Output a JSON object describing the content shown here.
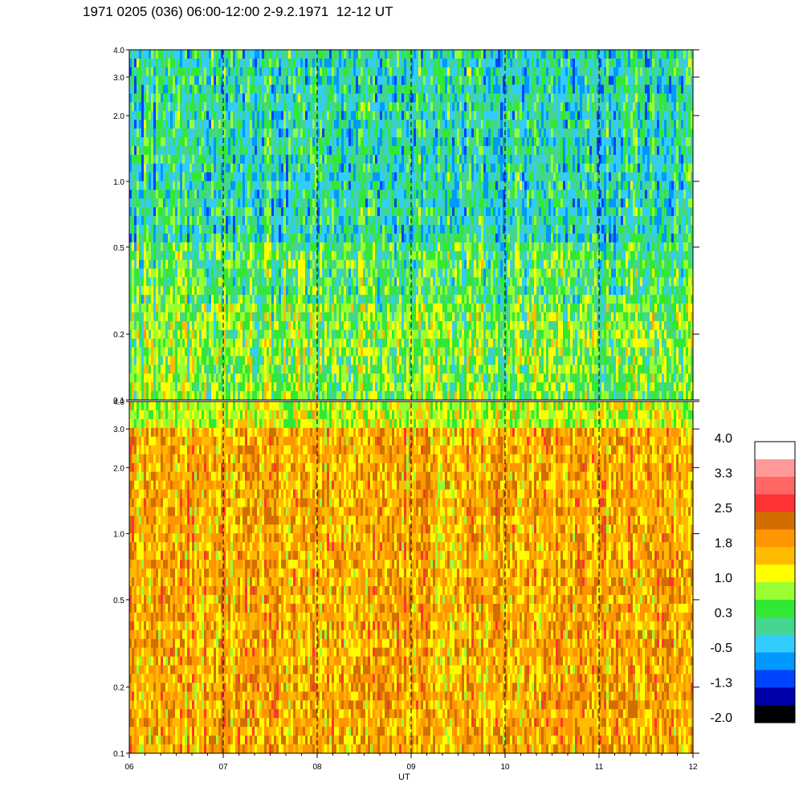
{
  "chart_data": {
    "type": "heatmap",
    "title": "1971 0205 (036) 06:00-12:00 2-9.2.1971  12-12 UT",
    "xlabel": "UT",
    "x_ticks": [
      "06",
      "07",
      "08",
      "09",
      "10",
      "11",
      "12"
    ],
    "x_range": [
      6,
      12
    ],
    "y_ticks": [
      "0.1",
      "0.2",
      "0.5",
      "1.0",
      "2.0",
      "3.0",
      "4.0"
    ],
    "y_tick_values": [
      0.1,
      0.2,
      0.5,
      1.0,
      2.0,
      3.0,
      4.0
    ],
    "y_range": [
      0.1,
      4.0
    ],
    "y_scale": "log",
    "grid": "dashed vertical lines at each hour",
    "panels": [
      {
        "name": "upper",
        "dominant_level": 0.3,
        "levels_range": [
          -1.3,
          1.8
        ]
      },
      {
        "name": "lower",
        "dominant_level": 1.8,
        "levels_range": [
          0.3,
          3.3
        ]
      }
    ],
    "colorbar": {
      "labels": [
        "4.0",
        "3.3",
        "2.5",
        "1.8",
        "1.0",
        "0.3",
        "-0.5",
        "-1.3",
        "-2.0"
      ],
      "colors": [
        "#ffffff",
        "#ff9999",
        "#ff6666",
        "#ff3333",
        "#d26e00",
        "#ff9500",
        "#ffbb00",
        "#ffff00",
        "#99ff33",
        "#33e833",
        "#44d68f",
        "#33ccff",
        "#0099ff",
        "#0044ff",
        "#0000aa",
        "#000000"
      ]
    }
  }
}
